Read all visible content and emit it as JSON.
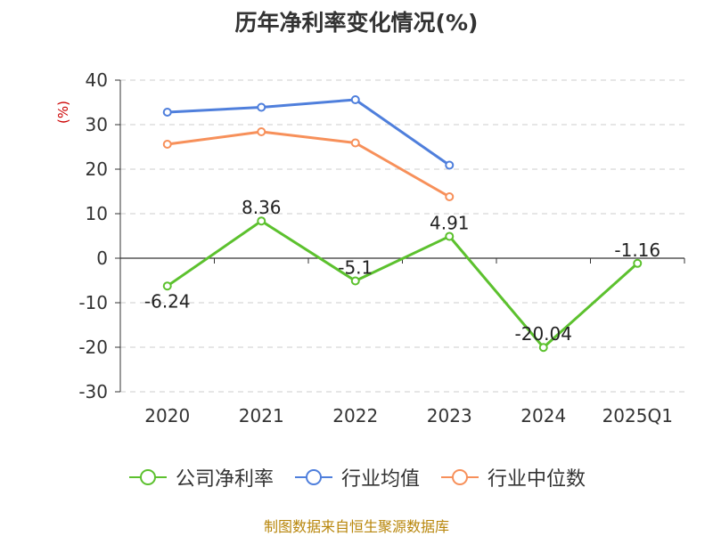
{
  "title": "历年净利率变化情况(%)",
  "source": "制图数据来自恒生聚源数据库",
  "chart_data": {
    "type": "line",
    "title": "历年净利率变化情况(%)",
    "ylabel": "(%)",
    "categories": [
      "2020",
      "2021",
      "2022",
      "2023",
      "2024",
      "2025Q1"
    ],
    "ylim": [
      -30,
      40
    ],
    "yticks": [
      40,
      30,
      20,
      10,
      0,
      -10,
      -20,
      -30
    ],
    "grid": true,
    "legend_position": "bottom",
    "series": [
      {
        "name": "公司净利率",
        "color": "#5cc12e",
        "labels": true,
        "values": [
          -6.24,
          8.36,
          -5.1,
          4.91,
          -20.04,
          -1.16
        ],
        "label_text": [
          "-6.24",
          "8.36",
          "-5.1",
          "4.91",
          "-20.04",
          "-1.16"
        ]
      },
      {
        "name": "行业均值",
        "color": "#4f7fdc",
        "labels": false,
        "values": [
          32.8,
          33.9,
          35.6,
          20.9,
          null,
          null
        ]
      },
      {
        "name": "行业中位数",
        "color": "#f7905a",
        "labels": false,
        "values": [
          25.6,
          28.4,
          25.9,
          13.8,
          null,
          null
        ]
      }
    ]
  }
}
